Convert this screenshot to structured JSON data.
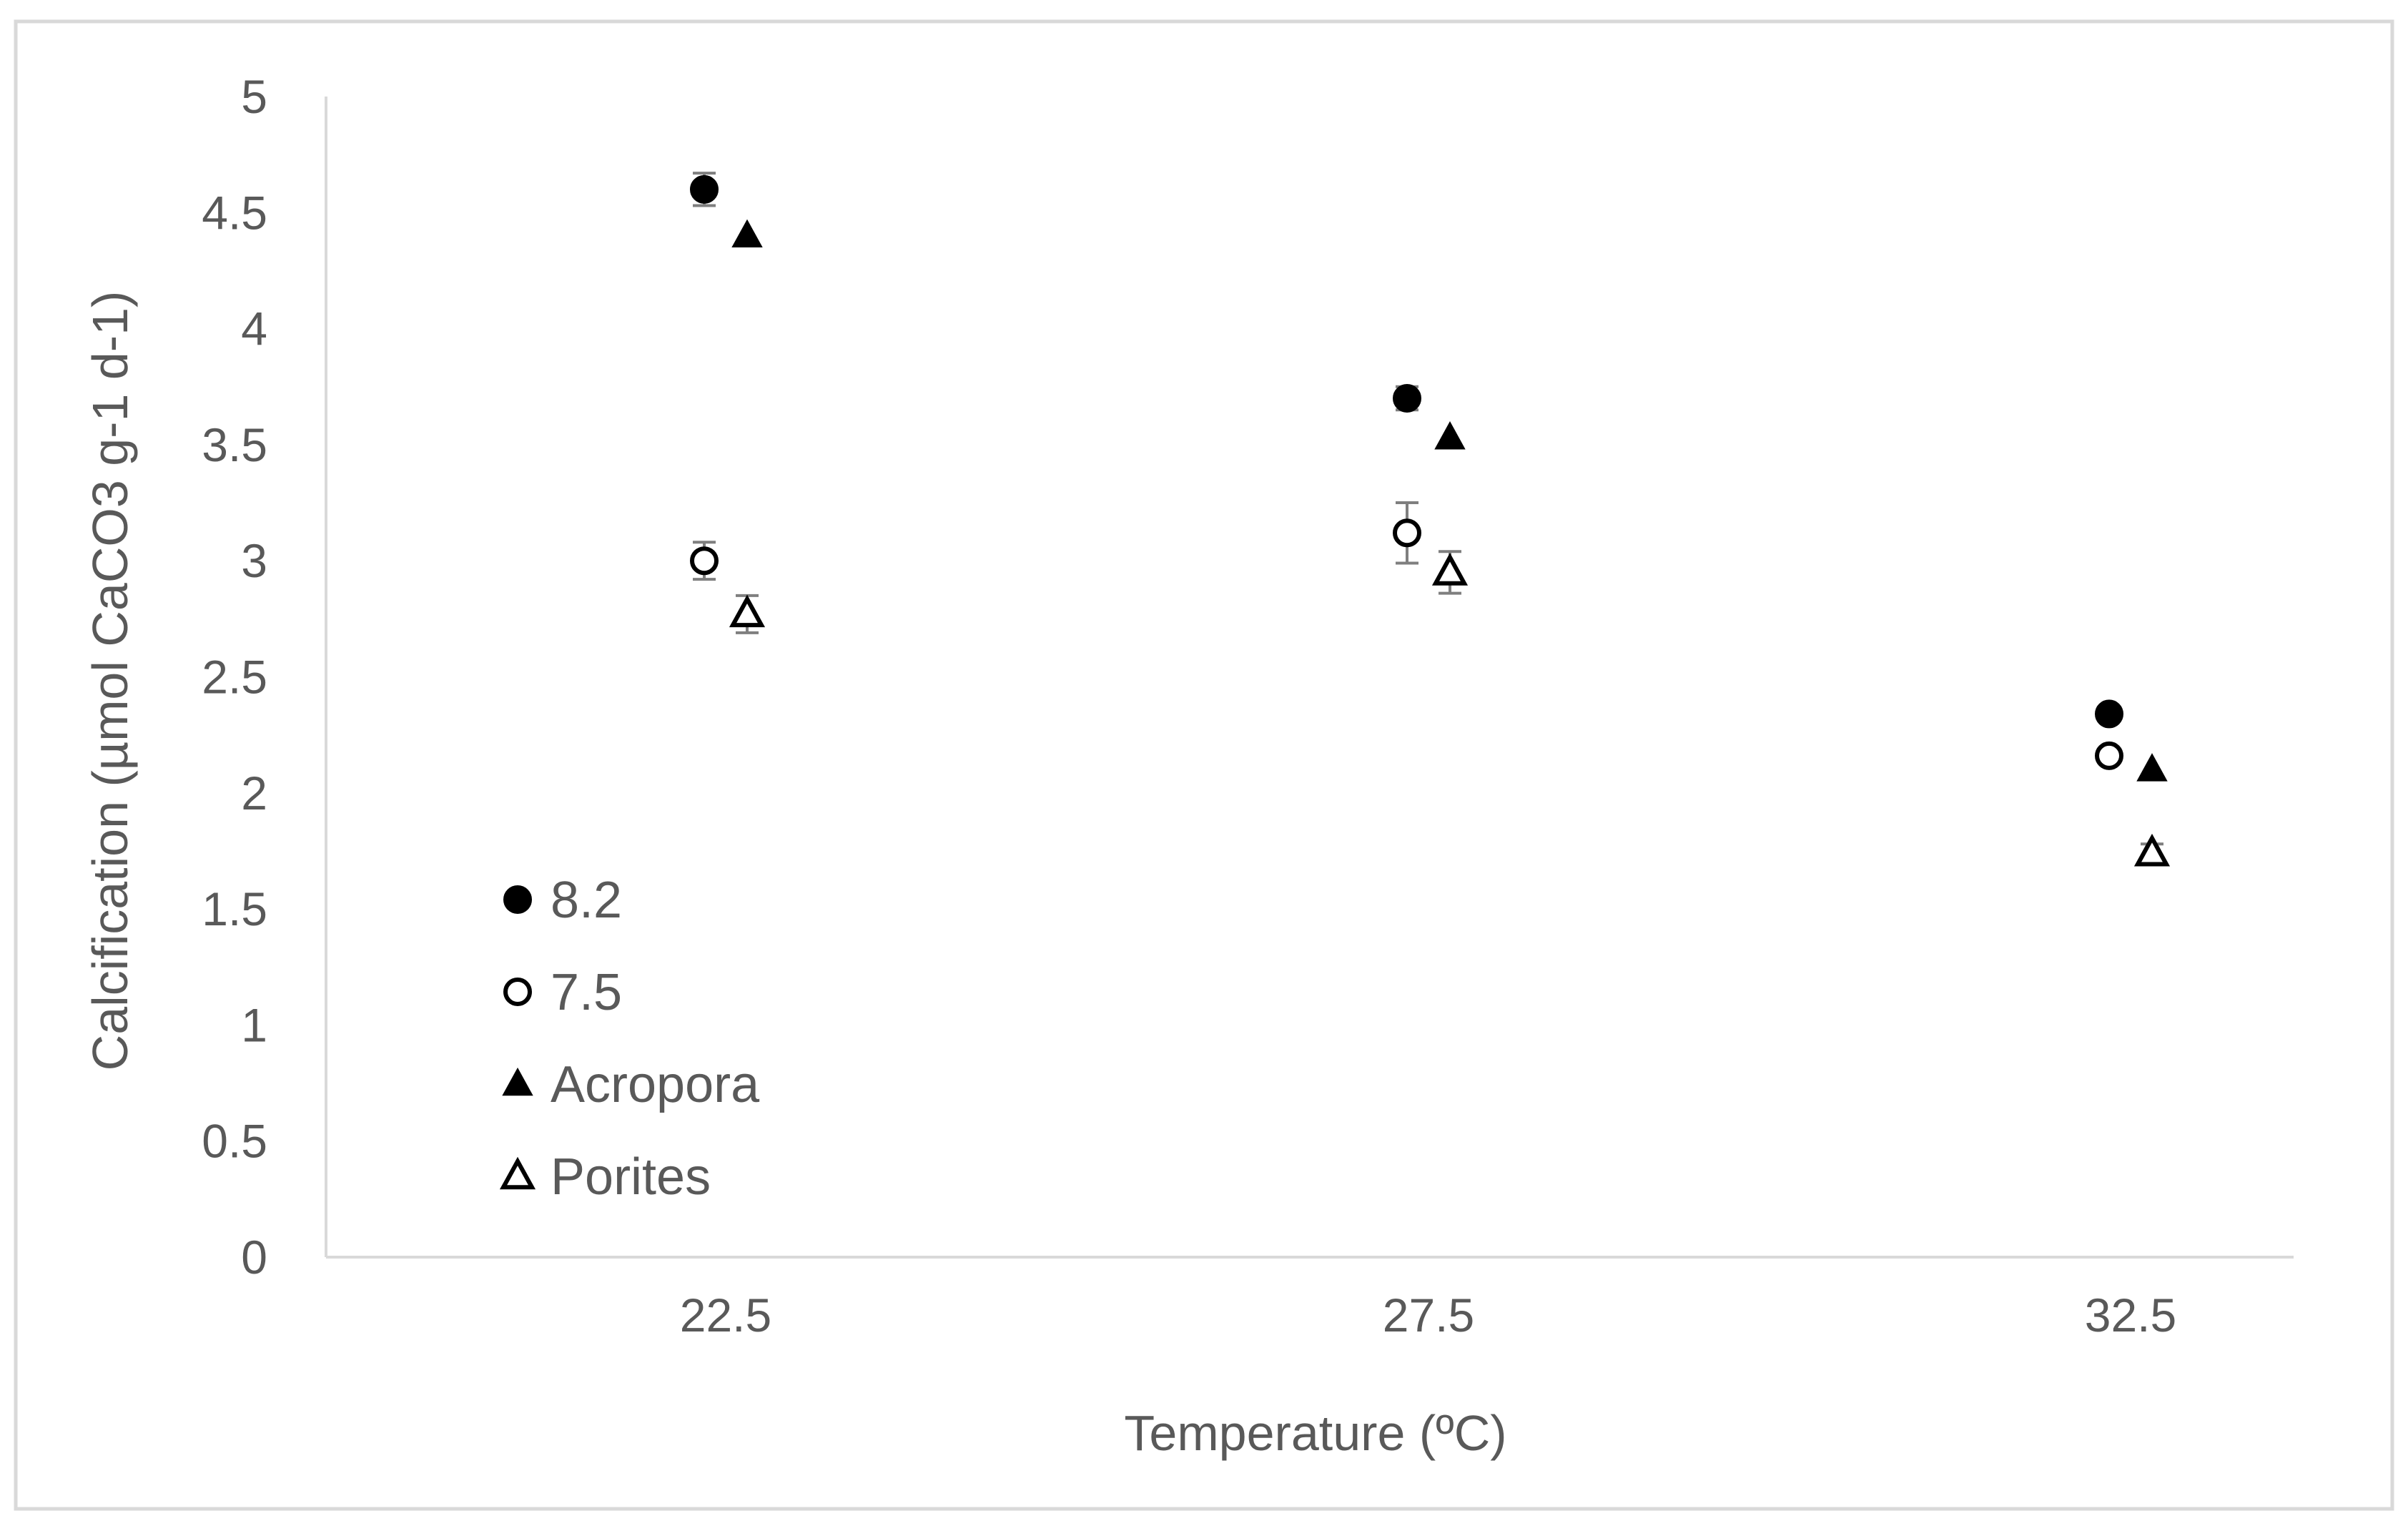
{
  "chart_data": {
    "type": "scatter",
    "xlabel": "Temperature (ºC)",
    "ylabel": "Calcification (µmol CaCO3 g-1 d-1)",
    "categories": [
      "22.5",
      "27.5",
      "32.5"
    ],
    "ylim": [
      0,
      5
    ],
    "yticks": [
      "0",
      "0.5",
      "1",
      "1.5",
      "2",
      "2.5",
      "3",
      "3.5",
      "4",
      "4.5",
      "5"
    ],
    "grid": false,
    "legend_position": "bottom-left",
    "series": [
      {
        "name": "8.2",
        "marker": "filled-circle",
        "color": "#000000",
        "values": [
          4.6,
          3.7,
          2.34
        ],
        "error": [
          0.07,
          0.05,
          0.0
        ]
      },
      {
        "name": "7.5",
        "marker": "open-circle",
        "color": "#000000",
        "values": [
          3.0,
          3.12,
          2.16
        ],
        "error": [
          0.08,
          0.13,
          0.0
        ]
      },
      {
        "name": "Acropora",
        "marker": "filled-triangle",
        "color": "#000000",
        "values": [
          4.4,
          3.53,
          2.1
        ],
        "error": [
          0.0,
          0.0,
          0.0
        ]
      },
      {
        "name": "Porites",
        "marker": "open-triangle",
        "color": "#000000",
        "values": [
          2.77,
          2.95,
          1.74
        ],
        "error": [
          0.08,
          0.09,
          0.04
        ]
      }
    ]
  }
}
